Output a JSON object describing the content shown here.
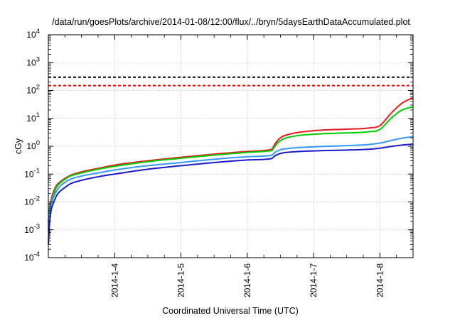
{
  "chart_data": {
    "type": "line",
    "title": "/data/run/goesPlots/archive/2014-01-08/12:00/flux/../bryn/5daysEarthDataAccumulated.plot",
    "xlabel": "Coordinated Universal Time (UTC)",
    "ylabel": "cGy",
    "y_scale": "log",
    "ylim": [
      0.0001,
      10000
    ],
    "xlim": [
      "2014-01-03T00:00",
      "2014-01-08T12:00"
    ],
    "x_tick_labels": [
      "2014-1-4",
      "2014-1-5",
      "2014-1-6",
      "2014-1-7",
      "2014-1-8"
    ],
    "x_tick_values": [
      "2014-01-04",
      "2014-01-05",
      "2014-01-06",
      "2014-01-07",
      "2014-01-08"
    ],
    "y_ticks": [
      {
        "value": 0.0001,
        "base": "10",
        "exp": "-4"
      },
      {
        "value": 0.001,
        "base": "10",
        "exp": "-3"
      },
      {
        "value": 0.01,
        "base": "10",
        "exp": "-2"
      },
      {
        "value": 0.1,
        "base": "10",
        "exp": "-1"
      },
      {
        "value": 1,
        "base": "10",
        "exp": "0"
      },
      {
        "value": 10,
        "base": "10",
        "exp": "1"
      },
      {
        "value": 100,
        "base": "10",
        "exp": "2"
      },
      {
        "value": 1000,
        "base": "10",
        "exp": "3"
      },
      {
        "value": 10000,
        "base": "10",
        "exp": "4"
      }
    ],
    "grid": true,
    "legend": "none",
    "reference_lines": [
      {
        "value": 300,
        "color": "#000000",
        "style": "dashed"
      },
      {
        "value": 150,
        "color": "#ff0000",
        "style": "dashed"
      }
    ],
    "series": [
      {
        "color": "#e41a1c",
        "x": [
          "2014-01-03T00:00",
          "2014-01-03T00:30",
          "2014-01-03T01:00",
          "2014-01-03T02:00",
          "2014-01-03T03:00",
          "2014-01-03T04:00",
          "2014-01-03T06:00",
          "2014-01-03T08:00",
          "2014-01-03T12:00",
          "2014-01-03T18:00",
          "2014-01-04T00:00",
          "2014-01-04T12:00",
          "2014-01-05T00:00",
          "2014-01-05T12:00",
          "2014-01-06T00:00",
          "2014-01-06T08:00",
          "2014-01-06T09:00",
          "2014-01-06T10:00",
          "2014-01-06T12:00",
          "2014-01-06T16:00",
          "2014-01-07T00:00",
          "2014-01-07T12:00",
          "2014-01-07T20:00",
          "2014-01-08T00:00",
          "2014-01-08T04:00",
          "2014-01-08T08:00",
          "2014-01-08T12:00"
        ],
        "y": [
          0.002,
          0.006,
          0.012,
          0.025,
          0.04,
          0.05,
          0.07,
          0.09,
          0.12,
          0.16,
          0.21,
          0.3,
          0.4,
          0.52,
          0.65,
          0.74,
          0.8,
          1.2,
          2.0,
          2.8,
          3.6,
          4.1,
          4.5,
          5.5,
          15,
          35,
          55
        ]
      },
      {
        "color": "#00cc00",
        "x": [
          "2014-01-03T00:00",
          "2014-01-03T00:30",
          "2014-01-03T01:00",
          "2014-01-03T02:00",
          "2014-01-03T03:00",
          "2014-01-03T04:00",
          "2014-01-03T06:00",
          "2014-01-03T08:00",
          "2014-01-03T12:00",
          "2014-01-03T18:00",
          "2014-01-04T00:00",
          "2014-01-04T12:00",
          "2014-01-05T00:00",
          "2014-01-05T12:00",
          "2014-01-06T00:00",
          "2014-01-06T08:00",
          "2014-01-06T09:00",
          "2014-01-06T10:00",
          "2014-01-06T12:00",
          "2014-01-06T16:00",
          "2014-01-07T00:00",
          "2014-01-07T12:00",
          "2014-01-07T20:00",
          "2014-01-08T00:00",
          "2014-01-08T04:00",
          "2014-01-08T08:00",
          "2014-01-08T12:00"
        ],
        "y": [
          0.0015,
          0.005,
          0.01,
          0.02,
          0.035,
          0.045,
          0.065,
          0.085,
          0.11,
          0.15,
          0.19,
          0.28,
          0.37,
          0.48,
          0.6,
          0.68,
          0.72,
          1.0,
          1.6,
          2.2,
          2.7,
          3.0,
          3.3,
          4.0,
          10,
          20,
          26
        ]
      },
      {
        "color": "#3399ff",
        "x": [
          "2014-01-03T00:00",
          "2014-01-03T00:30",
          "2014-01-03T01:00",
          "2014-01-03T02:00",
          "2014-01-03T03:00",
          "2014-01-03T04:00",
          "2014-01-03T06:00",
          "2014-01-03T08:00",
          "2014-01-03T12:00",
          "2014-01-03T18:00",
          "2014-01-04T00:00",
          "2014-01-04T12:00",
          "2014-01-05T00:00",
          "2014-01-05T12:00",
          "2014-01-06T00:00",
          "2014-01-06T08:00",
          "2014-01-06T09:00",
          "2014-01-06T10:00",
          "2014-01-06T12:00",
          "2014-01-06T16:00",
          "2014-01-07T00:00",
          "2014-01-07T12:00",
          "2014-01-07T20:00",
          "2014-01-08T00:00",
          "2014-01-08T04:00",
          "2014-01-08T08:00",
          "2014-01-08T12:00"
        ],
        "y": [
          0.001,
          0.004,
          0.008,
          0.016,
          0.025,
          0.035,
          0.05,
          0.065,
          0.085,
          0.11,
          0.14,
          0.2,
          0.26,
          0.34,
          0.42,
          0.46,
          0.48,
          0.6,
          0.75,
          0.85,
          0.95,
          1.05,
          1.15,
          1.3,
          1.6,
          1.95,
          2.2
        ]
      },
      {
        "color": "#1a1acc",
        "x": [
          "2014-01-03T00:00",
          "2014-01-03T00:30",
          "2014-01-03T01:00",
          "2014-01-03T02:00",
          "2014-01-03T03:00",
          "2014-01-03T04:00",
          "2014-01-03T06:00",
          "2014-01-03T08:00",
          "2014-01-03T12:00",
          "2014-01-03T18:00",
          "2014-01-04T00:00",
          "2014-01-04T12:00",
          "2014-01-05T00:00",
          "2014-01-05T12:00",
          "2014-01-06T00:00",
          "2014-01-06T08:00",
          "2014-01-06T09:00",
          "2014-01-06T10:00",
          "2014-01-06T12:00",
          "2014-01-06T16:00",
          "2014-01-07T00:00",
          "2014-01-07T12:00",
          "2014-01-07T20:00",
          "2014-01-08T00:00",
          "2014-01-08T04:00",
          "2014-01-08T08:00",
          "2014-01-08T12:00"
        ],
        "y": [
          0.0003,
          0.002,
          0.005,
          0.01,
          0.017,
          0.023,
          0.033,
          0.045,
          0.06,
          0.08,
          0.1,
          0.15,
          0.2,
          0.26,
          0.32,
          0.35,
          0.37,
          0.45,
          0.55,
          0.62,
          0.68,
          0.73,
          0.78,
          0.85,
          0.98,
          1.1,
          1.18
        ]
      }
    ]
  }
}
